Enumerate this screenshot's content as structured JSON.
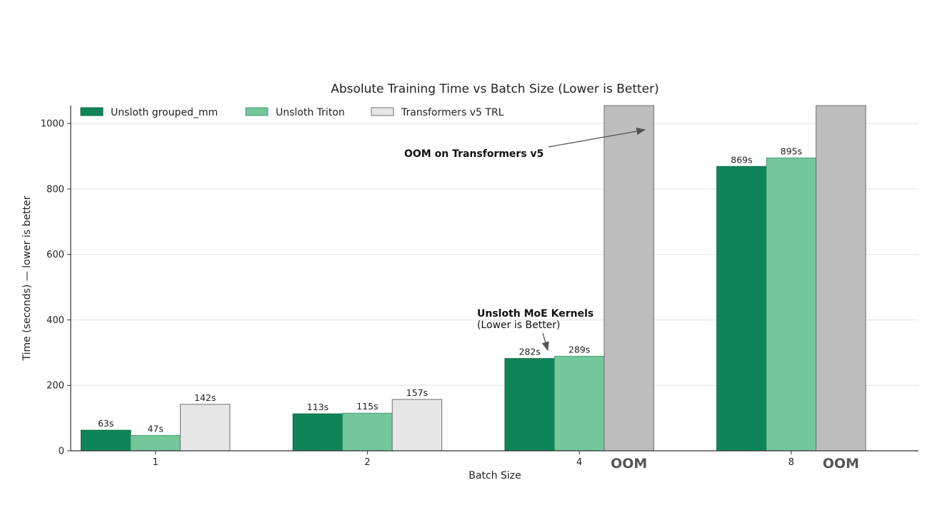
{
  "chart_data": {
    "type": "bar",
    "title": "Absolute Training Time vs Batch Size (Lower is Better)",
    "xlabel": "Batch Size",
    "ylabel": "Time (seconds) — lower is better",
    "categories": [
      "1",
      "2",
      "4",
      "8"
    ],
    "ylim": [
      0,
      1055
    ],
    "yticks": [
      0,
      200,
      400,
      600,
      800,
      1000
    ],
    "grid": "horizontal",
    "legend": "top-left",
    "series": [
      {
        "name": "Unsloth grouped_mm",
        "color": "#0e8558",
        "values": [
          63,
          113,
          282,
          869
        ],
        "labels": [
          "63s",
          "113s",
          "282s",
          "869s"
        ]
      },
      {
        "name": "Unsloth Triton",
        "color": "#74c69b",
        "values": [
          47,
          115,
          289,
          895
        ],
        "labels": [
          "47s",
          "115s",
          "289s",
          "895s"
        ]
      },
      {
        "name": "Transformers v5 TRL",
        "color": "#e6e6e6",
        "values": [
          142,
          157,
          null,
          null
        ],
        "labels": [
          "142s",
          "157s",
          "",
          ""
        ]
      }
    ],
    "oom": {
      "color": "#bdbdbd",
      "label": "OOM",
      "categories": [
        "4",
        "8"
      ]
    },
    "annotations": {
      "oom_note": "OOM on Transformers v5",
      "kernels_title": "Unsloth MoE Kernels",
      "kernels_sub": "(Lower is Better)"
    }
  }
}
